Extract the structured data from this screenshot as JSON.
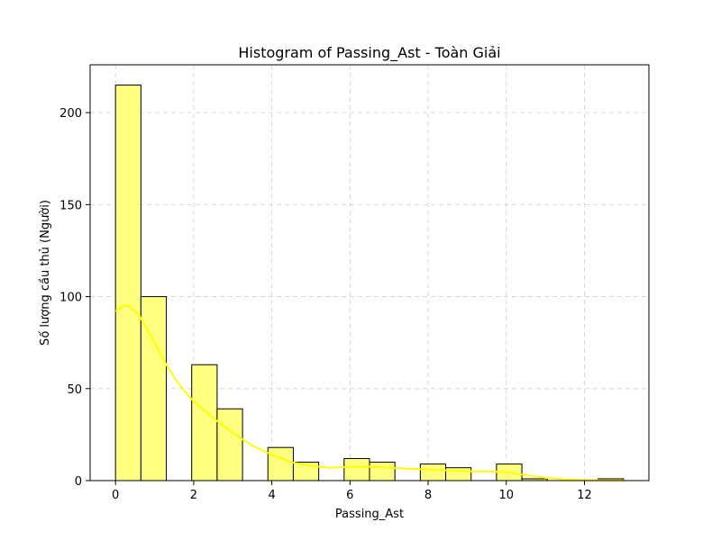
{
  "chart_data": {
    "type": "bar",
    "title": "Histogram of Passing_Ast - Toàn Giải",
    "xlabel": "Passing_Ast",
    "ylabel": "Số lượng cầu thủ (Người)",
    "xlim": [
      -0.65,
      13.65
    ],
    "ylim": [
      0,
      226
    ],
    "x_ticks": [
      0,
      2,
      4,
      6,
      8,
      10,
      12
    ],
    "y_ticks": [
      0,
      50,
      100,
      150,
      200
    ],
    "grid": true,
    "bar_color": "#ffff7f",
    "edge_color": "#000000",
    "kde_color": "#ffff00",
    "bins": [
      {
        "x0": 0.0,
        "x1": 0.65,
        "count": 215
      },
      {
        "x0": 0.65,
        "x1": 1.3,
        "count": 100
      },
      {
        "x0": 1.3,
        "x1": 1.95,
        "count": 0
      },
      {
        "x0": 1.95,
        "x1": 2.6,
        "count": 63
      },
      {
        "x0": 2.6,
        "x1": 3.25,
        "count": 39
      },
      {
        "x0": 3.25,
        "x1": 3.9,
        "count": 0
      },
      {
        "x0": 3.9,
        "x1": 4.55,
        "count": 18
      },
      {
        "x0": 4.55,
        "x1": 5.2,
        "count": 10
      },
      {
        "x0": 5.2,
        "x1": 5.85,
        "count": 0
      },
      {
        "x0": 5.85,
        "x1": 6.5,
        "count": 12
      },
      {
        "x0": 6.5,
        "x1": 7.15,
        "count": 10
      },
      {
        "x0": 7.15,
        "x1": 7.8,
        "count": 0
      },
      {
        "x0": 7.8,
        "x1": 8.45,
        "count": 9
      },
      {
        "x0": 8.45,
        "x1": 9.1,
        "count": 7
      },
      {
        "x0": 9.1,
        "x1": 9.75,
        "count": 0
      },
      {
        "x0": 9.75,
        "x1": 10.4,
        "count": 9
      },
      {
        "x0": 10.4,
        "x1": 11.05,
        "count": 1
      },
      {
        "x0": 11.05,
        "x1": 11.7,
        "count": 0
      },
      {
        "x0": 11.7,
        "x1": 12.35,
        "count": 0
      },
      {
        "x0": 12.35,
        "x1": 13.0,
        "count": 1
      }
    ],
    "kde": {
      "x": [
        0.0,
        0.2,
        0.35,
        0.6,
        1.0,
        1.3,
        1.6,
        2.0,
        2.5,
        3.0,
        3.5,
        4.0,
        4.5,
        5.0,
        5.5,
        6.0,
        6.5,
        7.0,
        7.5,
        8.0,
        8.5,
        9.0,
        9.5,
        10.0,
        10.5,
        11.0,
        11.5,
        12.0,
        12.5,
        13.0
      ],
      "y": [
        92,
        95,
        95,
        90,
        75,
        63,
        53,
        43,
        34,
        26,
        19,
        14,
        10,
        8,
        7,
        7.5,
        7.5,
        7,
        6.5,
        6,
        5.5,
        5,
        5,
        4.5,
        3,
        1.5,
        0.7,
        0.3,
        0.1,
        0.05
      ]
    }
  }
}
